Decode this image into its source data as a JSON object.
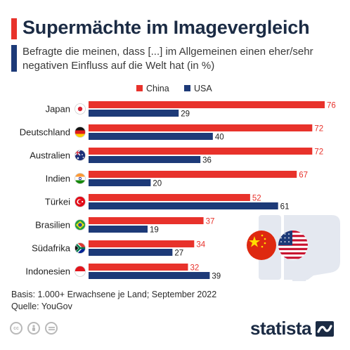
{
  "header": {
    "title": "Supermächte im Imagevergleich",
    "subtitle": "Befragte die meinen, dass [...] im Allgemeinen einen eher/sehr negativen Einfluss auf die Welt hat (in %)"
  },
  "footer": {
    "basis": "Basis: 1.000+ Erwachsene je Land; September 2022",
    "source": "Quelle: YouGov"
  },
  "brand": {
    "name": "statista",
    "logo_icon": "statista-logo-icon"
  },
  "license_icons": [
    "creative-commons-icon",
    "attribution-icon",
    "no-derivatives-icon"
  ],
  "decorations": [
    "china-flag-icon",
    "usa-flag-icon",
    "thumbs-down-icon"
  ],
  "colors": {
    "china": "#e8322b",
    "usa": "#1d3a78",
    "title": "#1b2b44",
    "watermark": "#e4e8f0"
  },
  "chart_data": {
    "type": "bar",
    "orientation": "horizontal",
    "categories": [
      "Japan",
      "Deutschland",
      "Australien",
      "Indien",
      "Türkei",
      "Brasilien",
      "Südafrika",
      "Indonesien"
    ],
    "category_flags": [
      "japan-flag-icon",
      "germany-flag-icon",
      "australia-flag-icon",
      "india-flag-icon",
      "turkey-flag-icon",
      "brazil-flag-icon",
      "south-africa-flag-icon",
      "indonesia-flag-icon"
    ],
    "series": [
      {
        "name": "China",
        "color": "#e8322b",
        "values": [
          76,
          72,
          72,
          67,
          52,
          37,
          34,
          32
        ]
      },
      {
        "name": "USA",
        "color": "#1d3a78",
        "values": [
          29,
          40,
          36,
          20,
          61,
          19,
          27,
          39
        ]
      }
    ],
    "legend_position": "top",
    "xlim": [
      0,
      76
    ],
    "data_labels": true,
    "grid": false
  }
}
